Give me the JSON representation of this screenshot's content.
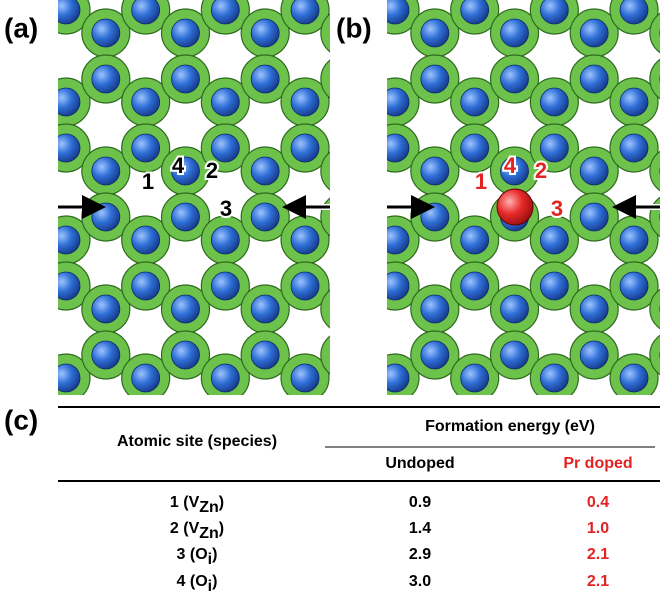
{
  "panels": [
    {
      "label": "(a)",
      "sites": [
        "1",
        "2",
        "3",
        "4"
      ]
    },
    {
      "label": "(b)",
      "sites": [
        "1",
        "2",
        "3",
        "4"
      ]
    }
  ],
  "table": {
    "label": "(c)",
    "header": {
      "site": "Atomic site (species)",
      "group": "Formation energy (eV)",
      "columns": [
        "Undoped",
        "Pr doped"
      ]
    },
    "rows": [
      {
        "site": [
          "1 (V",
          "Zn",
          ")"
        ],
        "values": [
          "0.9",
          "0.4"
        ]
      },
      {
        "site": [
          "2 (V",
          "Zn",
          ")"
        ],
        "values": [
          "1.4",
          "1.0"
        ]
      },
      {
        "site": [
          "3 (O",
          "i",
          ")"
        ],
        "values": [
          "2.9",
          "2.1"
        ]
      },
      {
        "site": [
          "4 (O",
          "i",
          ")"
        ],
        "values": [
          "3.0",
          "2.1"
        ]
      }
    ]
  }
}
